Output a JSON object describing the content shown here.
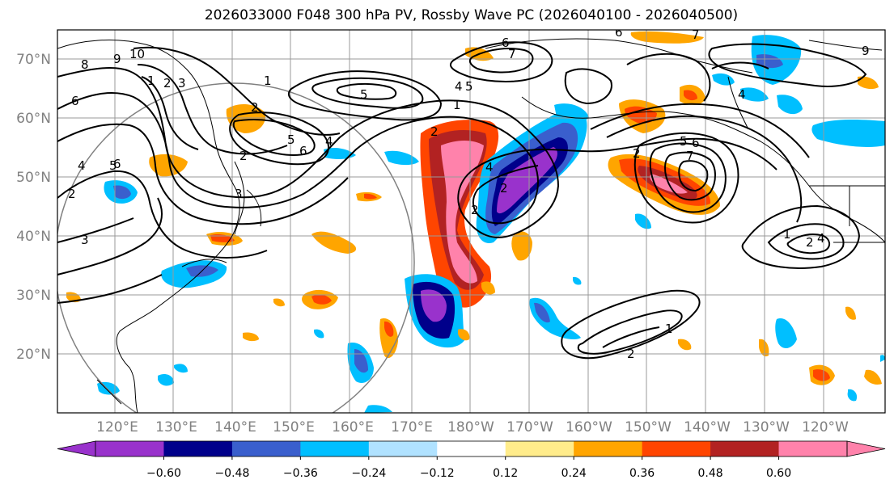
{
  "title": "2026033000 F048 300 hPa PV, Rossby Wave PC (2026040100 - 2026040500)",
  "lat_labels": [
    "70°N",
    "60°N",
    "50°N",
    "40°N",
    "30°N",
    "20°N"
  ],
  "lon_labels": [
    "120°E",
    "130°E",
    "140°E",
    "150°E",
    "160°E",
    "170°E",
    "180°W",
    "170°W",
    "160°W",
    "150°W",
    "140°W",
    "130°W",
    "120°W"
  ],
  "colorbar": {
    "colors": [
      "#9932CC",
      "#00008B",
      "#3A5FCD",
      "#00BFFF",
      "#B0E2FF",
      "#FFFFFF",
      "#FFEC8B",
      "#FFA500",
      "#FF4500",
      "#B22222",
      "#FF82AB"
    ],
    "ticks": [
      "−0.60",
      "−0.48",
      "−0.36",
      "−0.24",
      "−0.12",
      "0.12",
      "0.24",
      "0.36",
      "0.48",
      "0.60"
    ]
  },
  "contour_labels": [
    "8",
    "9",
    "10",
    "6",
    "1",
    "2",
    "3",
    "4",
    "2",
    "5",
    "6",
    "1",
    "2",
    "5",
    "4",
    "6",
    "5",
    "5",
    "6",
    "7",
    "9",
    "4",
    "3",
    "2",
    "3",
    "2",
    "1",
    "2",
    "4",
    "2",
    "2",
    "5",
    "6",
    "7",
    "1",
    "2",
    "4",
    "1",
    "2",
    "4",
    "6",
    "7"
  ]
}
